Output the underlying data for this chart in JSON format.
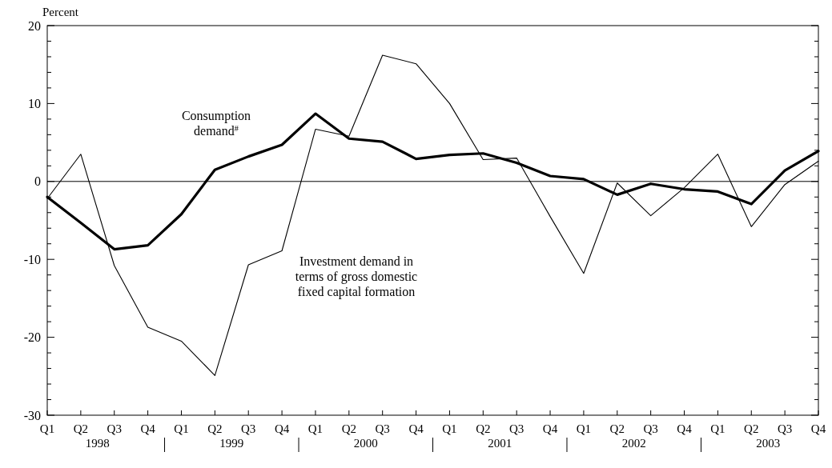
{
  "chart_data": {
    "type": "line",
    "ylabel": "Percent",
    "categories": [
      "Q1",
      "Q2",
      "Q3",
      "Q4",
      "Q1",
      "Q2",
      "Q3",
      "Q4",
      "Q1",
      "Q2",
      "Q3",
      "Q4",
      "Q1",
      "Q2",
      "Q3",
      "Q4",
      "Q1",
      "Q2",
      "Q3",
      "Q4",
      "Q1",
      "Q2",
      "Q3",
      "Q4"
    ],
    "series": [
      {
        "name": "Consumption demand$^{#}$",
        "color": "#000000",
        "values": [
          -2,
          -5.3,
          -8.7,
          -8.2,
          -4.2,
          1.5,
          3.2,
          4.7,
          8.7,
          5.5,
          5.1,
          2.9,
          3.4,
          3.6,
          2.4,
          0.7,
          0.3,
          -1.7,
          -0.3,
          -1,
          -1.3,
          -2.9,
          1.4,
          3.9
        ]
      },
      {
        "name": "Investment demand in terms of gross domestic fixed capital formation",
        "color": "#000000",
        "values": [
          -2.2,
          3.5,
          -10.8,
          -18.7,
          -20.5,
          -24.9,
          -10.7,
          -8.9,
          6.7,
          5.8,
          16.2,
          15.1,
          10,
          2.8,
          3,
          -4.5,
          -11.8,
          -0.2,
          -4.4,
          -0.8,
          3.5,
          -5.8,
          -0.4,
          2.6
        ]
      }
    ],
    "annotations": [
      "1998",
      "1999",
      "2000",
      "2001",
      "2002",
      "2003"
    ],
    "ylim": [
      -30,
      20
    ],
    "yticks": [
      -30,
      {
        "value": -28,
        "label": null
      },
      {
        "value": -26,
        "label": null
      },
      {
        "value": -24,
        "label": null
      },
      {
        "value": -22,
        "label": null
      },
      -20,
      {
        "value": -18,
        "label": null
      },
      {
        "value": -16,
        "label": null
      },
      {
        "value": -14,
        "label": null
      },
      {
        "value": -12,
        "label": null
      },
      -10,
      {
        "value": -8,
        "label": null
      },
      {
        "value": -6,
        "label": null
      },
      {
        "value": -4,
        "label": null
      },
      {
        "value": -2,
        "label": null
      },
      0,
      {
        "value": 2,
        "label": null
      },
      {
        "value": 4,
        "label": null
      },
      {
        "value": 6,
        "label": null
      },
      {
        "value": 8,
        "label": null
      },
      10,
      {
        "value": 12,
        "label": null
      },
      {
        "value": 14,
        "label": null
      },
      {
        "value": 16,
        "label": null
      },
      {
        "value": 18,
        "label": null
      },
      20
    ],
    "ref_lines": [
      {
        "axis": "y",
        "value": 0,
        "label": null,
        "color": "#000000"
      }
    ],
    "grid": false,
    "line_style": "solid"
  }
}
